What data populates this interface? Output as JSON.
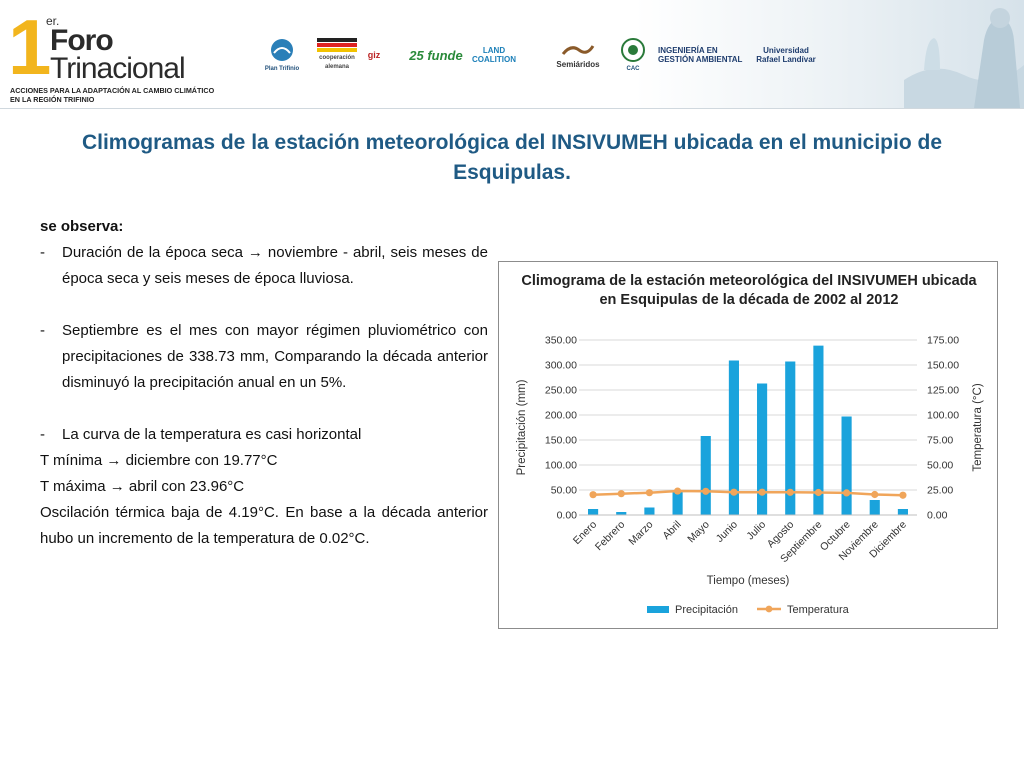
{
  "header": {
    "brand_number": "1",
    "brand_sup": "er.",
    "brand_line1": "Foro",
    "brand_line2": "Trinacional",
    "tagline_line1": "ACCIONES PARA LA ADAPTACIÓN AL CAMBIO CLIMÁTICO",
    "tagline_line2": "EN LA REGIÓN TRIFINIO",
    "logos": [
      {
        "name": "Plan Trifinio",
        "icon": "plan-trifinio-logo"
      },
      {
        "name": "cooperación alemana",
        "icon": "cooperacion-alemana-logo"
      },
      {
        "name": "giz",
        "icon": "giz-logo"
      },
      {
        "name": "25 funde",
        "icon": "funde-logo"
      },
      {
        "name": "LAND COALITION",
        "icon": "land-coalition-logo"
      },
      {
        "name": "Semiáridos",
        "icon": "semiaridos-logo"
      },
      {
        "name": "CAC",
        "icon": "cac-logo"
      },
      {
        "name": "INGENIERÍA EN GESTIÓN AMBIENTAL",
        "icon": "ingenieria-logo"
      },
      {
        "name": "Universidad Rafael Landívar",
        "icon": "url-logo"
      }
    ]
  },
  "title": "Climogramas de la estación meteorológica del INSIVUMEH ubicada en el municipio de Esquipulas.",
  "text": {
    "heading": "se observa:",
    "bullet1": "Duración de la época seca → noviembre - abril, seis meses de época seca y seis meses de época lluviosa.",
    "bullet2": "Septiembre es el mes con mayor régimen pluviométrico con precipitaciones de 338.73 mm, Comparando la década anterior disminuyó la precipitación anual en un 5%.",
    "bullet3": "La curva de la temperatura es casi horizontal",
    "tmin": "T mínima → diciembre con 19.77°C",
    "tmax": "T máxima → abril con 23.96°C",
    "oscilacion": "Oscilación térmica baja de 4.19°C. En base a la década anterior hubo un incremento de la temperatura de 0.02°C."
  },
  "chart_data": {
    "type": "bar",
    "title": "Climograma de la estación meteorológica del INSIVUMEH ubicada  en Esquipulas de la década de 2002 al 2012",
    "xlabel": "Tiempo  (meses)",
    "ylabel": "Precipitación  (mm)",
    "y2label": "Temperatura  (°C)",
    "categories": [
      "Enero",
      "Febrero",
      "Marzo",
      "Abril",
      "Mayo",
      "Junio",
      "Julio",
      "Agosto",
      "Septiembre",
      "Octubre",
      "Noviembre",
      "Diciembre"
    ],
    "ylim": [
      0,
      350
    ],
    "y2lim": [
      0,
      175
    ],
    "yticks": [
      "0.00",
      "50.00",
      "100.00",
      "150.00",
      "200.00",
      "250.00",
      "300.00",
      "350.00"
    ],
    "y2ticks": [
      "0.00",
      "25.00",
      "50.00",
      "75.00",
      "100.00",
      "125.00",
      "150.00",
      "175.00"
    ],
    "grid": true,
    "legend_position": "bottom",
    "series": [
      {
        "name": "Precipitación",
        "type": "bar",
        "axis": "left",
        "color": "#1aa3dc",
        "values": [
          12,
          6,
          15,
          48,
          158,
          309,
          263,
          307,
          338.73,
          197,
          30,
          12
        ]
      },
      {
        "name": "Temperatura",
        "type": "line",
        "axis": "right",
        "color": "#f0a55a",
        "values": [
          20.3,
          21.3,
          22.3,
          23.96,
          23.7,
          22.8,
          22.8,
          22.7,
          22.5,
          22.1,
          20.5,
          19.77
        ]
      }
    ]
  }
}
